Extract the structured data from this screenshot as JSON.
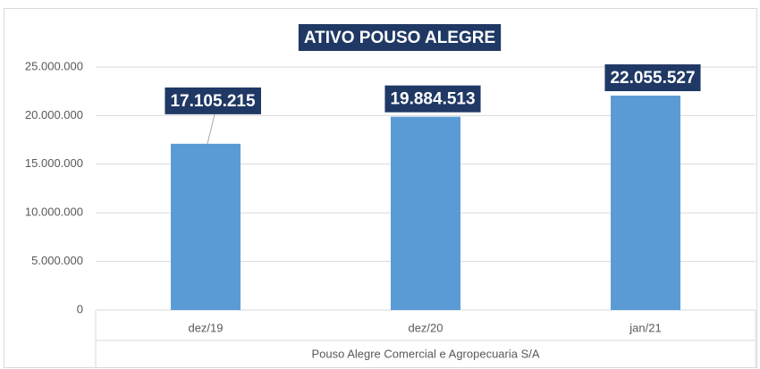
{
  "chart_data": {
    "type": "bar",
    "title": "ATIVO POUSO ALEGRE",
    "categories": [
      "dez/19",
      "dez/20",
      "jan/21"
    ],
    "x_group": "Pouso Alegre Comercial e Agropecuaria S/A",
    "values": [
      17105215,
      19884513,
      22055527
    ],
    "value_labels": [
      "17.105.215",
      "19.884.513",
      "22.055.527"
    ],
    "color": "#5b9bd5",
    "ylim": [
      0,
      25000000
    ],
    "yticks": [
      0,
      {
        "value": 5000000,
        "label": "5.000.000"
      },
      {
        "value": 10000000,
        "label": "10.000.000"
      },
      {
        "value": 15000000,
        "label": "15.000.000"
      },
      {
        "value": 20000000,
        "label": "20.000.000"
      },
      {
        "value": 25000000,
        "label": "25.000.000"
      }
    ],
    "grid": true
  }
}
